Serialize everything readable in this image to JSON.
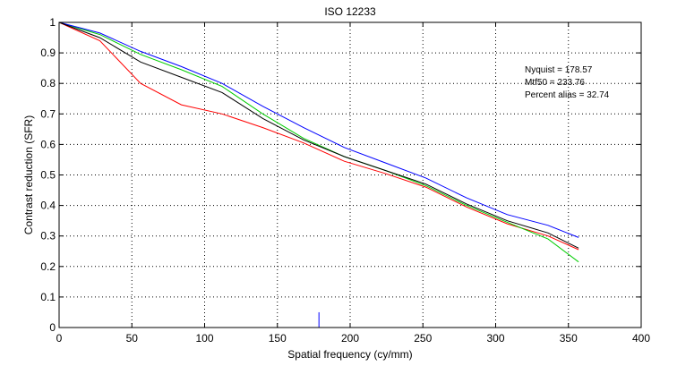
{
  "chart_data": {
    "type": "line",
    "title": "ISO 12233",
    "xlabel": "Spatial frequency (cy/mm)",
    "ylabel": "Contrast reduction (SFR)",
    "xlim": [
      0,
      400
    ],
    "ylim": [
      0,
      1
    ],
    "x_ticks": [
      0,
      50,
      100,
      150,
      200,
      250,
      300,
      350,
      400
    ],
    "y_ticks": [
      0,
      0.1,
      0.2,
      0.3,
      0.4,
      0.5,
      0.6,
      0.7,
      0.8,
      0.9,
      1
    ],
    "grid": true,
    "annotations": [
      "Nyquist = 178.57",
      "Mtf50 = 233.76",
      "Percent alias = 32.74"
    ],
    "nyquist_marker": {
      "x": 178.57,
      "y": 0.05,
      "color": "#0000ff"
    },
    "series": [
      {
        "color": "#ff0000",
        "x": [
          0,
          28,
          56,
          84,
          112,
          140,
          168,
          196,
          224,
          252,
          280,
          308,
          336,
          357
        ],
        "y": [
          1.0,
          0.94,
          0.8,
          0.73,
          0.7,
          0.655,
          0.605,
          0.545,
          0.505,
          0.46,
          0.395,
          0.34,
          0.3,
          0.255
        ]
      },
      {
        "color": "#00cc00",
        "x": [
          0,
          28,
          56,
          84,
          112,
          140,
          168,
          196,
          224,
          252,
          280,
          308,
          336,
          357
        ],
        "y": [
          1.0,
          0.96,
          0.895,
          0.845,
          0.79,
          0.7,
          0.62,
          0.56,
          0.515,
          0.465,
          0.4,
          0.345,
          0.29,
          0.215
        ]
      },
      {
        "color": "#0000ff",
        "x": [
          0,
          28,
          56,
          84,
          112,
          140,
          168,
          196,
          224,
          252,
          280,
          308,
          336,
          357
        ],
        "y": [
          1.0,
          0.965,
          0.905,
          0.855,
          0.8,
          0.725,
          0.655,
          0.59,
          0.54,
          0.49,
          0.425,
          0.37,
          0.335,
          0.295
        ]
      },
      {
        "color": "#000000",
        "x": [
          0,
          28,
          56,
          84,
          112,
          140,
          168,
          196,
          224,
          252,
          280,
          308,
          336,
          357
        ],
        "y": [
          1.0,
          0.95,
          0.87,
          0.82,
          0.77,
          0.685,
          0.615,
          0.56,
          0.515,
          0.47,
          0.405,
          0.35,
          0.31,
          0.26
        ]
      }
    ]
  }
}
